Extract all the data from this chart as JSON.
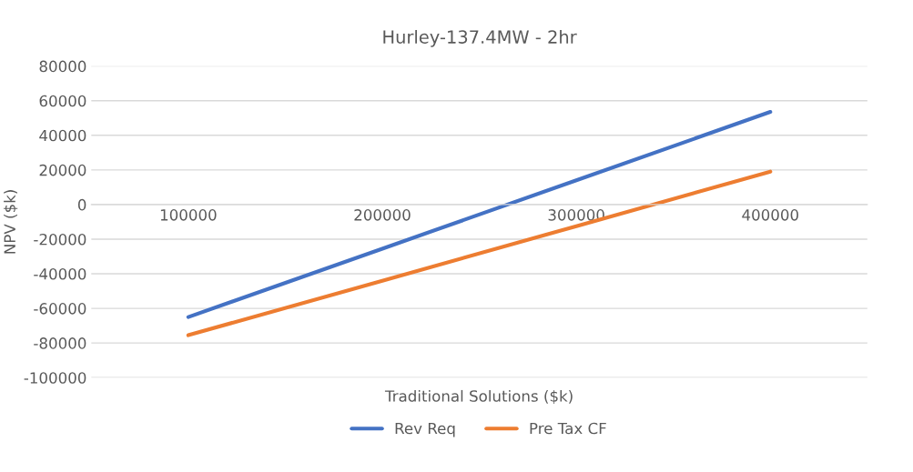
{
  "chart_data": {
    "type": "line",
    "title": "Hurley-137.4MW - 2hr",
    "xlabel": "Traditional Solutions ($k)",
    "ylabel": "NPV ($k)",
    "categories": [
      "100000",
      "200000",
      "300000",
      "400000"
    ],
    "series": [
      {
        "name": "Rev Req",
        "color": "#4472c4",
        "values": [
          -65000,
          -25500,
          14000,
          53500
        ]
      },
      {
        "name": "Pre Tax CF",
        "color": "#ed7d31",
        "values": [
          -75500,
          -44000,
          -12500,
          19000
        ]
      }
    ],
    "ylim": [
      -100000,
      80000
    ],
    "yticks": [
      -100000,
      -80000,
      -60000,
      -40000,
      -20000,
      0,
      20000,
      40000,
      60000,
      80000
    ],
    "grid": "y",
    "legend": "bottom",
    "marker": "none",
    "line_style": "solid"
  }
}
